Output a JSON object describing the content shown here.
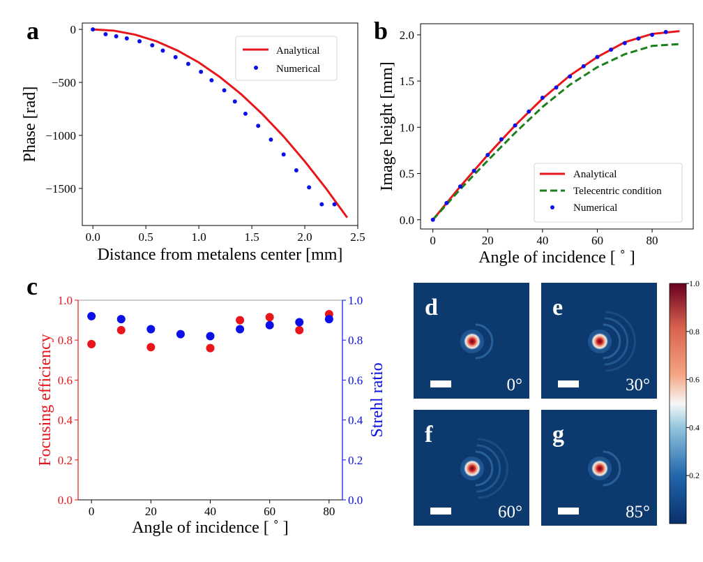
{
  "colors": {
    "analytical": "#e8161b",
    "numerical": "#0a10e6",
    "telecentric": "#1b7f1b",
    "efficiency": "#e8161b",
    "strehl": "#0a10e6",
    "image_bg": "#0d3a6e"
  },
  "chart_data": [
    {
      "panel": "a",
      "type": "line",
      "xlabel": "Distance from metalens center [mm]",
      "ylabel": "Phase [rad]",
      "xlim": [
        -0.1,
        2.5
      ],
      "ylim": [
        -1850,
        60
      ],
      "xticks": [
        0.0,
        0.5,
        1.0,
        1.5,
        2.0,
        2.5
      ],
      "xtick_labels": [
        "0.0",
        "0.5",
        "1.0",
        "1.5",
        "2.0",
        "2.5"
      ],
      "yticks": [
        0,
        -500,
        -1000,
        -1500
      ],
      "ytick_labels": [
        "0",
        "−500",
        "−1000",
        "−1500"
      ],
      "legend_position": "top-right",
      "series": [
        {
          "name": "Analytical",
          "style": "line",
          "x": [
            0.0,
            0.2,
            0.4,
            0.6,
            0.8,
            1.0,
            1.2,
            1.4,
            1.6,
            1.8,
            2.0,
            2.2,
            2.4
          ],
          "y": [
            0,
            -12,
            -50,
            -112,
            -200,
            -312,
            -450,
            -612,
            -800,
            -1010,
            -1245,
            -1500,
            -1775
          ]
        },
        {
          "name": "Numerical",
          "style": "markers",
          "x": [
            0.0,
            0.12,
            0.22,
            0.32,
            0.44,
            0.56,
            0.66,
            0.78,
            0.9,
            1.02,
            1.12,
            1.24,
            1.34,
            1.44,
            1.56,
            1.68,
            1.8,
            1.92,
            2.04,
            2.16,
            2.28
          ],
          "y": [
            0,
            -45,
            -65,
            -85,
            -112,
            -150,
            -200,
            -262,
            -325,
            -400,
            -480,
            -575,
            -680,
            -795,
            -910,
            -1040,
            -1180,
            -1330,
            -1490,
            -1650,
            -1650
          ]
        }
      ]
    },
    {
      "panel": "b",
      "type": "line",
      "xlabel": "Angle of incidence [ ˚ ]",
      "ylabel": "Image height [mm]",
      "xlim": [
        -4.5,
        95
      ],
      "ylim": [
        -0.1,
        2.12
      ],
      "xticks": [
        0,
        20,
        40,
        60,
        80
      ],
      "xtick_labels": [
        "0",
        "20",
        "40",
        "60",
        "80"
      ],
      "yticks": [
        0.0,
        0.5,
        1.0,
        1.5,
        2.0
      ],
      "ytick_labels": [
        "0.0",
        "0.5",
        "1.0",
        "1.5",
        "2.0"
      ],
      "legend_position": "bottom-right",
      "series": [
        {
          "name": "Analytical",
          "style": "line",
          "x": [
            0,
            10,
            20,
            30,
            40,
            50,
            60,
            70,
            80,
            90
          ],
          "y": [
            0.0,
            0.36,
            0.7,
            1.02,
            1.31,
            1.56,
            1.76,
            1.92,
            2.01,
            2.04
          ]
        },
        {
          "name": "Telecentric condition",
          "style": "dashed",
          "x": [
            0,
            10,
            20,
            30,
            40,
            50,
            60,
            70,
            80,
            90
          ],
          "y": [
            0.0,
            0.33,
            0.64,
            0.94,
            1.22,
            1.46,
            1.65,
            1.79,
            1.88,
            1.9
          ]
        },
        {
          "name": "Numerical",
          "style": "markers",
          "x": [
            0,
            5,
            10,
            15,
            20,
            25,
            30,
            35,
            40,
            45,
            50,
            55,
            60,
            65,
            70,
            75,
            80,
            85
          ],
          "y": [
            0.0,
            0.18,
            0.36,
            0.53,
            0.7,
            0.87,
            1.02,
            1.17,
            1.32,
            1.43,
            1.55,
            1.66,
            1.76,
            1.84,
            1.91,
            1.96,
            2.0,
            2.03
          ]
        }
      ]
    },
    {
      "panel": "c",
      "type": "scatter",
      "xlabel": "Angle of incidence [ ˚ ]",
      "ylabel_left": "Focusing efficiency",
      "ylabel_right": "Strehl ratio",
      "xlim": [
        -4.5,
        84.5
      ],
      "ylim": [
        0.0,
        1.0
      ],
      "xticks": [
        0,
        20,
        40,
        60,
        80
      ],
      "xtick_labels": [
        "0",
        "20",
        "40",
        "60",
        "80"
      ],
      "yticks": [
        0.0,
        0.2,
        0.4,
        0.6,
        0.8,
        1.0
      ],
      "ytick_labels": [
        "0.0",
        "0.2",
        "0.4",
        "0.6",
        "0.8",
        "1.0"
      ],
      "series": [
        {
          "name": "Focusing efficiency",
          "axis": "left",
          "x": [
            0,
            10,
            20,
            40,
            50,
            60,
            70,
            80
          ],
          "y": [
            0.78,
            0.85,
            0.765,
            0.76,
            0.9,
            0.915,
            0.85,
            0.93
          ]
        },
        {
          "name": "Strehl ratio",
          "axis": "right",
          "x": [
            0,
            10,
            20,
            30,
            40,
            50,
            60,
            70,
            80
          ],
          "y": [
            0.92,
            0.905,
            0.855,
            0.83,
            0.82,
            0.855,
            0.875,
            0.89,
            0.905
          ]
        }
      ]
    },
    {
      "panel": "d-g",
      "type": "heatmap",
      "colorbar_ticks": [
        "1.0",
        "0.8",
        "0.6",
        "0.4",
        "0.2"
      ],
      "images": [
        {
          "letter": "d",
          "angle": "0°",
          "rings": 1
        },
        {
          "letter": "e",
          "angle": "30°",
          "rings": 3
        },
        {
          "letter": "f",
          "angle": "60°",
          "rings": 3
        },
        {
          "letter": "g",
          "angle": "85°",
          "rings": 1
        }
      ]
    }
  ],
  "panel_letters": {
    "a": "a",
    "b": "b",
    "c": "c"
  }
}
